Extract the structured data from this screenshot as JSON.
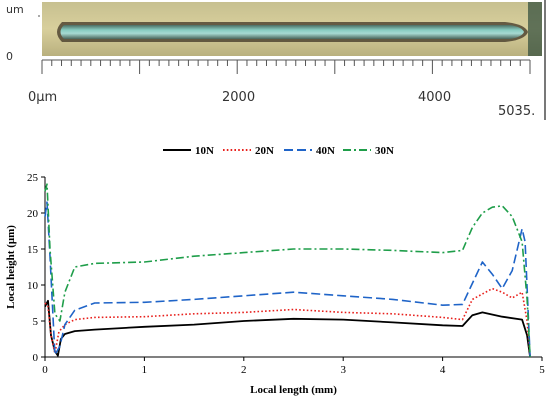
{
  "micrograph": {
    "scale_labels": {
      "top": "um",
      "bottom": "0"
    },
    "ruler_labels": [
      "0μm",
      "2000",
      "4000",
      "5035."
    ],
    "colors": {
      "surface": "#cbc38c",
      "groove": "#7ec7bd",
      "edge": "#3b2f22"
    }
  },
  "chart_data": {
    "type": "line",
    "xlabel": "Local length (mm)",
    "ylabel": "Local height  (μm)",
    "xlim": [
      0,
      5
    ],
    "ylim": [
      0,
      25
    ],
    "xticks": [
      "0",
      "1",
      "2",
      "3",
      "4",
      "5"
    ],
    "yticks": [
      "0",
      "5",
      "10",
      "15",
      "20",
      "25"
    ],
    "legend_position": "top",
    "series": [
      {
        "name": "10N",
        "color": "#000000",
        "dash": "solid",
        "x": [
          0,
          0.03,
          0.06,
          0.1,
          0.13,
          0.16,
          0.2,
          0.3,
          0.5,
          1.0,
          1.5,
          2.0,
          2.5,
          3.0,
          3.5,
          4.0,
          4.2,
          4.3,
          4.4,
          4.6,
          4.8,
          4.85,
          4.88
        ],
        "y": [
          7.0,
          7.8,
          3.0,
          0.8,
          0.2,
          2.5,
          3.2,
          3.6,
          3.8,
          4.2,
          4.5,
          5.0,
          5.3,
          5.2,
          4.8,
          4.4,
          4.3,
          5.8,
          6.2,
          5.6,
          5.2,
          3.0,
          0
        ]
      },
      {
        "name": "20N",
        "color": "#e8201c",
        "dash": "dotted",
        "x": [
          0,
          0.03,
          0.06,
          0.1,
          0.14,
          0.2,
          0.3,
          0.5,
          1.0,
          1.5,
          2.0,
          2.5,
          3.0,
          3.5,
          4.0,
          4.2,
          4.3,
          4.5,
          4.6,
          4.7,
          4.8,
          4.85,
          4.88
        ],
        "y": [
          7.5,
          7.0,
          3.0,
          0.5,
          3.5,
          4.5,
          5.2,
          5.5,
          5.6,
          6.0,
          6.2,
          6.6,
          6.2,
          6.0,
          5.5,
          5.2,
          8.0,
          9.5,
          9.0,
          8.2,
          9.0,
          5.0,
          0
        ]
      },
      {
        "name": "40N",
        "color": "#1f64c8",
        "dash": "dashed",
        "x": [
          0,
          0.02,
          0.05,
          0.1,
          0.15,
          0.2,
          0.3,
          0.5,
          1.0,
          1.5,
          2.0,
          2.5,
          3.0,
          3.5,
          4.0,
          4.2,
          4.4,
          4.5,
          4.6,
          4.7,
          4.8,
          4.83,
          4.88
        ],
        "y": [
          19.5,
          21.5,
          14.0,
          0.3,
          1.5,
          4.5,
          6.5,
          7.5,
          7.6,
          8.0,
          8.5,
          9.0,
          8.5,
          8.0,
          7.2,
          7.3,
          13.2,
          11.5,
          9.5,
          12.0,
          17.8,
          16.0,
          0
        ]
      },
      {
        "name": "30N",
        "color": "#1f9e4a",
        "dash": "dashdot",
        "x": [
          0,
          0.02,
          0.05,
          0.1,
          0.15,
          0.2,
          0.3,
          0.5,
          1.0,
          1.5,
          2.0,
          2.5,
          3.0,
          3.5,
          4.0,
          4.2,
          4.3,
          4.4,
          4.5,
          4.6,
          4.7,
          4.8,
          4.85,
          4.88
        ],
        "y": [
          23.0,
          24.0,
          15.0,
          6.0,
          5.0,
          9.0,
          12.5,
          13.0,
          13.2,
          14.0,
          14.5,
          15.0,
          15.0,
          14.8,
          14.5,
          14.8,
          18.0,
          20.0,
          20.8,
          21.0,
          19.5,
          16.0,
          8.0,
          0
        ]
      }
    ]
  }
}
